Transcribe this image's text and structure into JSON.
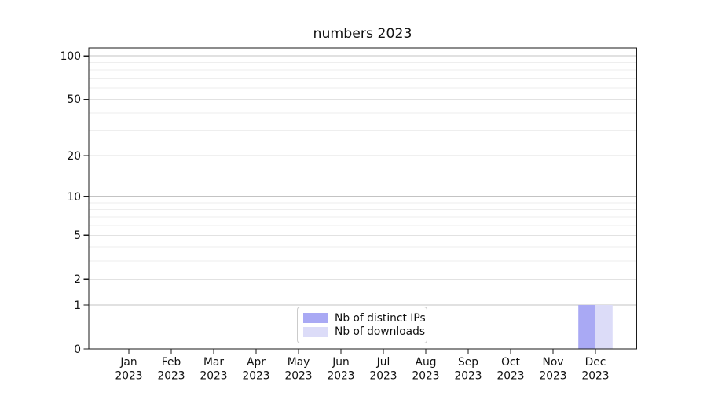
{
  "chart_data": {
    "type": "bar",
    "title": "numbers 2023",
    "x_labels": [
      {
        "month": "Jan",
        "year": "2023"
      },
      {
        "month": "Feb",
        "year": "2023"
      },
      {
        "month": "Mar",
        "year": "2023"
      },
      {
        "month": "Apr",
        "year": "2023"
      },
      {
        "month": "May",
        "year": "2023"
      },
      {
        "month": "Jun",
        "year": "2023"
      },
      {
        "month": "Jul",
        "year": "2023"
      },
      {
        "month": "Aug",
        "year": "2023"
      },
      {
        "month": "Sep",
        "year": "2023"
      },
      {
        "month": "Oct",
        "year": "2023"
      },
      {
        "month": "Nov",
        "year": "2023"
      },
      {
        "month": "Dec",
        "year": "2023"
      }
    ],
    "series": [
      {
        "name": "Nb of distinct IPs",
        "color": "#a9a9f4",
        "values": [
          0,
          0,
          0,
          0,
          0,
          0,
          0,
          0,
          0,
          0,
          0,
          1
        ]
      },
      {
        "name": "Nb of downloads",
        "color": "#dcdcf8",
        "values": [
          0,
          0,
          0,
          0,
          0,
          0,
          0,
          0,
          0,
          0,
          0,
          1
        ]
      }
    ],
    "yscale": "log1p",
    "ylim": [
      0,
      115
    ],
    "yticks": [
      0,
      1,
      2,
      5,
      10,
      20,
      50,
      100
    ],
    "grid": {
      "strong": {
        "values": [
          1,
          10,
          100
        ],
        "color": "#c3c3c3"
      },
      "mid": {
        "values": [
          2,
          5,
          20,
          50
        ],
        "color": "#e2e2e2"
      },
      "faint": {
        "values": [
          3,
          4,
          6,
          7,
          8,
          9,
          30,
          40,
          60,
          70,
          80,
          90
        ],
        "color": "#eeeeee"
      }
    },
    "legend_position": "lower center",
    "axis_color": "#1a1a1a",
    "text_color": "#111111",
    "xlabel": "",
    "ylabel": ""
  }
}
